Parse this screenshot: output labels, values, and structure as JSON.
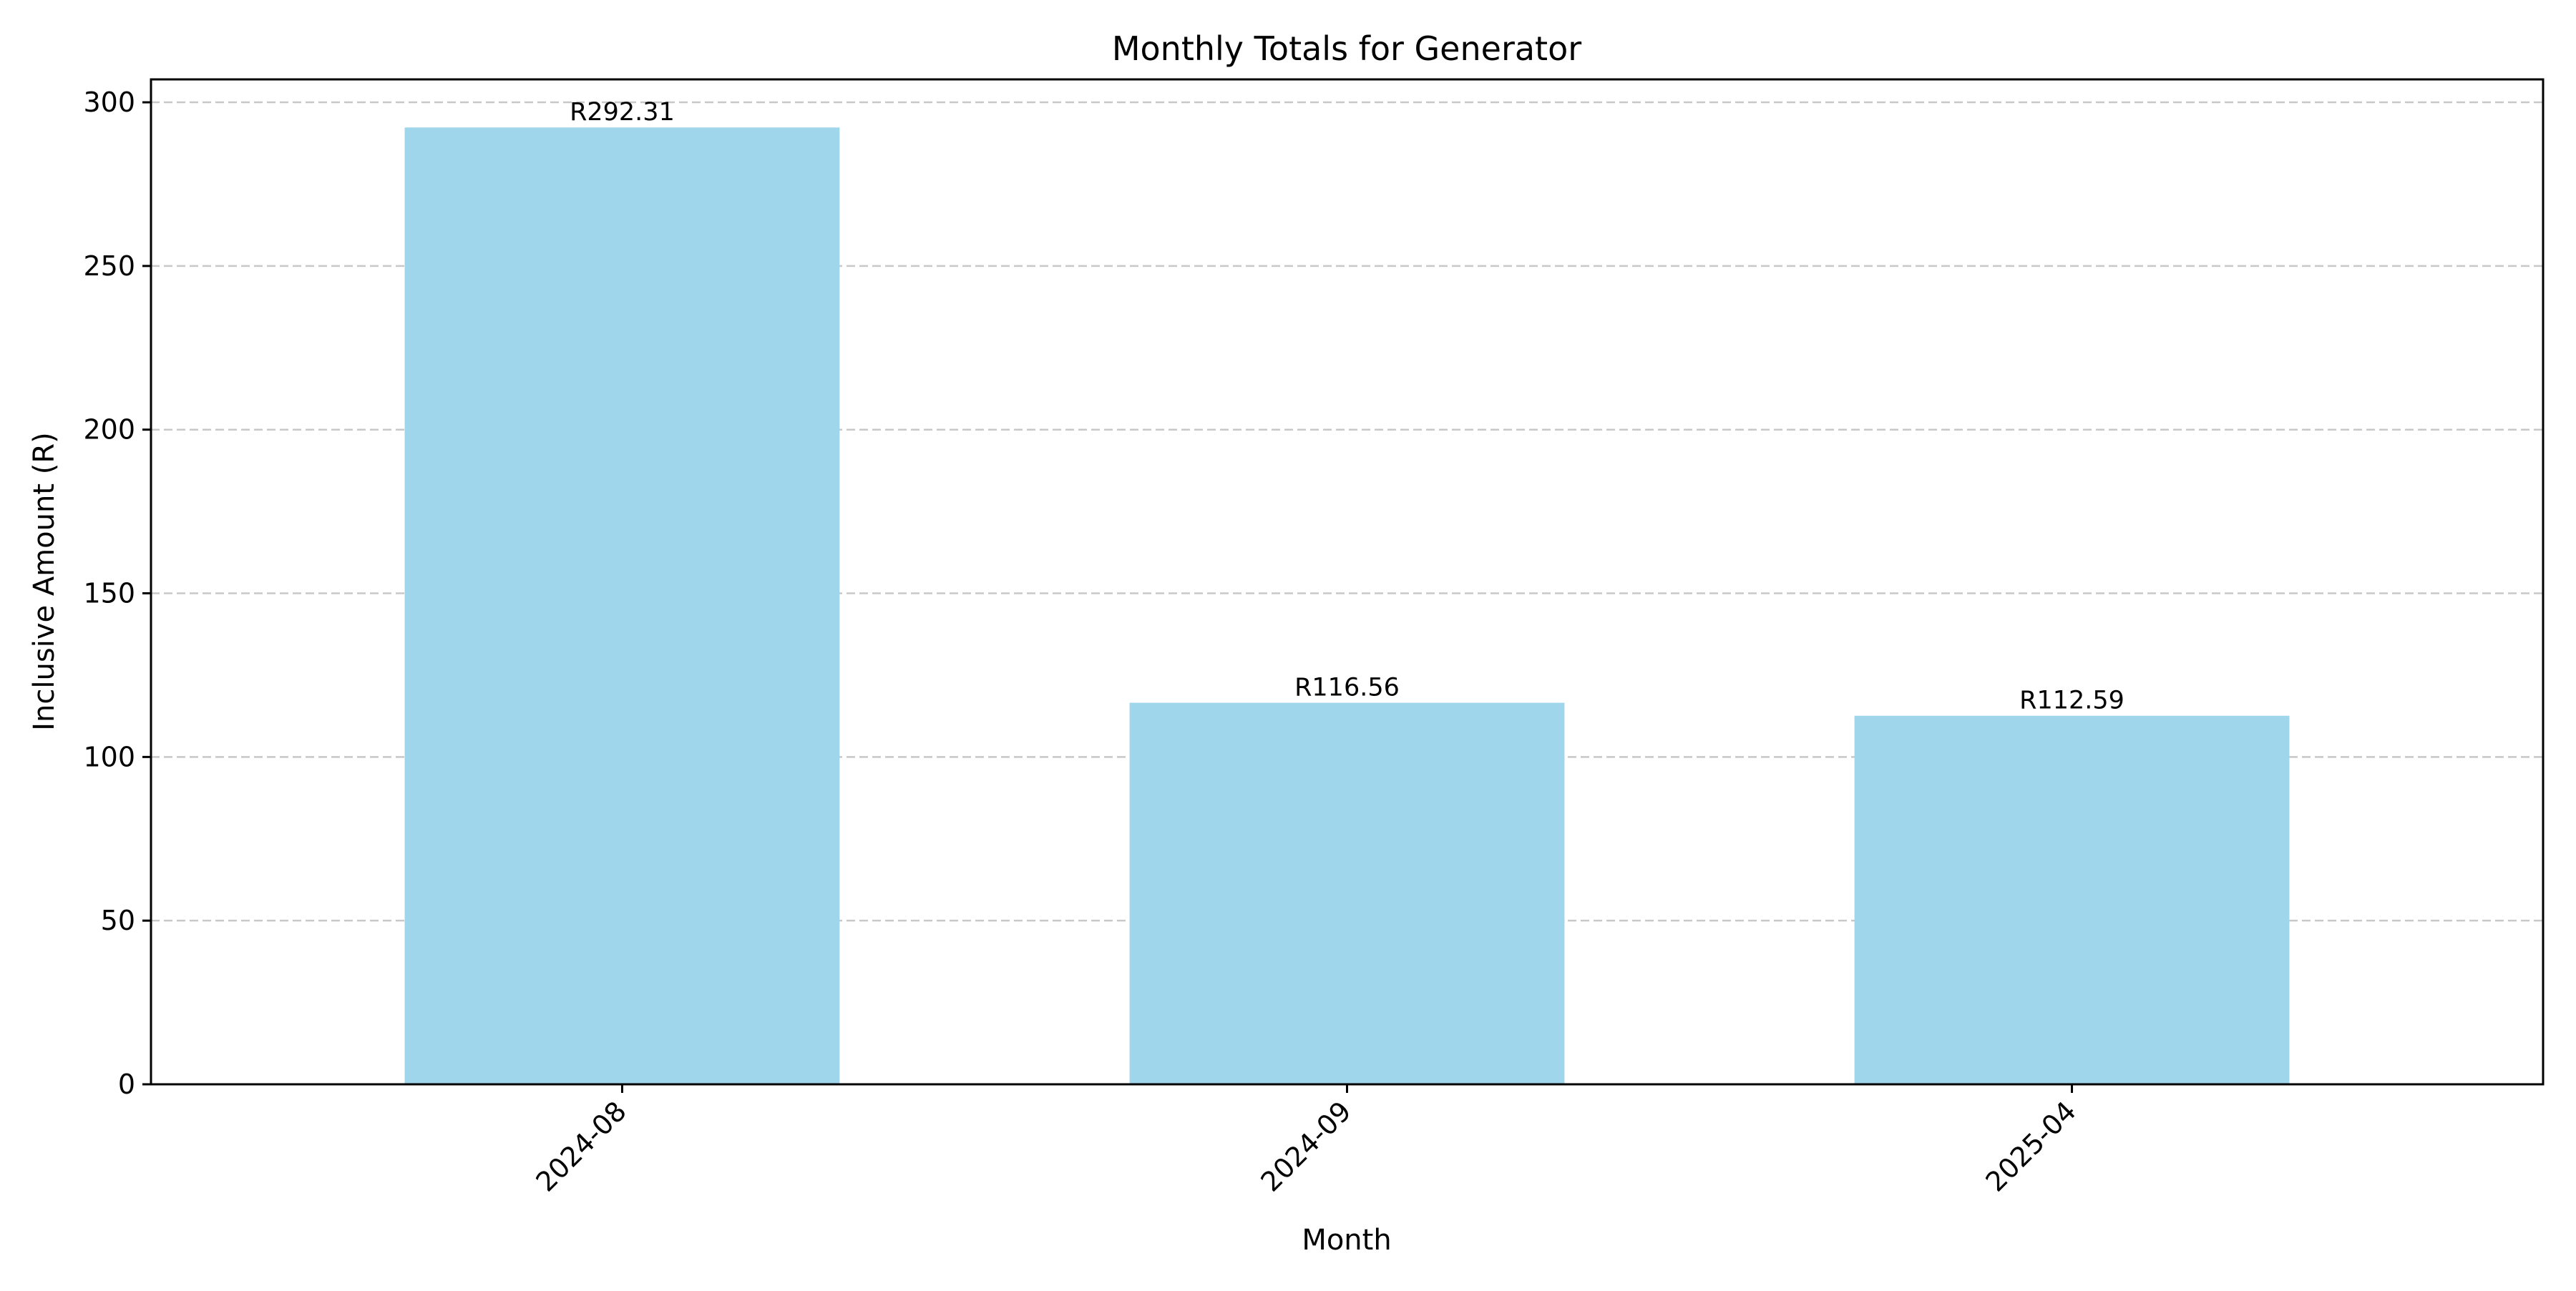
{
  "chart_data": {
    "type": "bar",
    "title": "Monthly Totals for Generator",
    "xlabel": "Month",
    "ylabel": "Inclusive Amount (R)",
    "categories": [
      "2024-08",
      "2024-09",
      "2025-04"
    ],
    "values": [
      292.31,
      116.56,
      112.59
    ],
    "data_labels": [
      "R292.31",
      "R116.56",
      "R112.59"
    ],
    "ylim": [
      0,
      307
    ],
    "yticks": [
      0,
      50,
      100,
      150,
      200,
      250,
      300
    ],
    "grid": "horizontal dashed",
    "bar_color": "#a0d6ec",
    "grid_color": "#c8c8c8",
    "xtick_rotation": "45 degrees",
    "legend": "none"
  }
}
